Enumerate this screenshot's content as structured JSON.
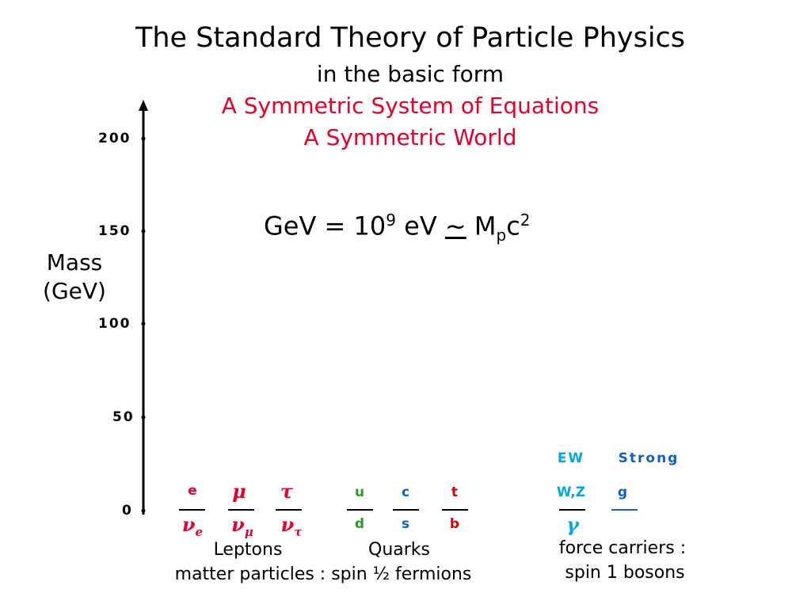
{
  "title": "The Standard Theory of Particle Physics",
  "subtitle": "in the basic form",
  "tagline1": "A Symmetric System of Equations",
  "tagline2": "A Symmetric World",
  "formula": {
    "lhs": "GeV = 10",
    "exp": "9",
    "mid": " eV ",
    "approx": "~",
    "m": " M",
    "msub": "p",
    "c": "c",
    "csup": "2"
  },
  "yaxis": {
    "label_line1": "Mass",
    "label_line2": "(GeV)",
    "ticks": [
      "0",
      "50",
      "100",
      "150",
      "200"
    ]
  },
  "leptons": {
    "charged": [
      "e",
      "μ",
      "τ"
    ],
    "neutrinos": [
      {
        "base": "ν",
        "sub": "e"
      },
      {
        "base": "ν",
        "sub": "μ"
      },
      {
        "base": "ν",
        "sub": "τ"
      }
    ]
  },
  "quarks": {
    "up": [
      "u",
      "c",
      "t"
    ],
    "down": [
      "d",
      "s",
      "b"
    ]
  },
  "bosons": {
    "ew_header": "EW",
    "strong_header": "Strong",
    "wz": "W,Z",
    "g": "g",
    "photon": "γ"
  },
  "captions": {
    "leptons": "Leptons",
    "quarks": "Quarks",
    "matter": "matter particles : spin ½ fermions",
    "force1": "force carriers :",
    "force2": "spin 1 bosons"
  },
  "colors": {
    "red": "#e8002a",
    "green": "#2a9a2a",
    "blue": "#1060c8",
    "cyan": "#00a8e8",
    "darkred": "#d80000"
  }
}
